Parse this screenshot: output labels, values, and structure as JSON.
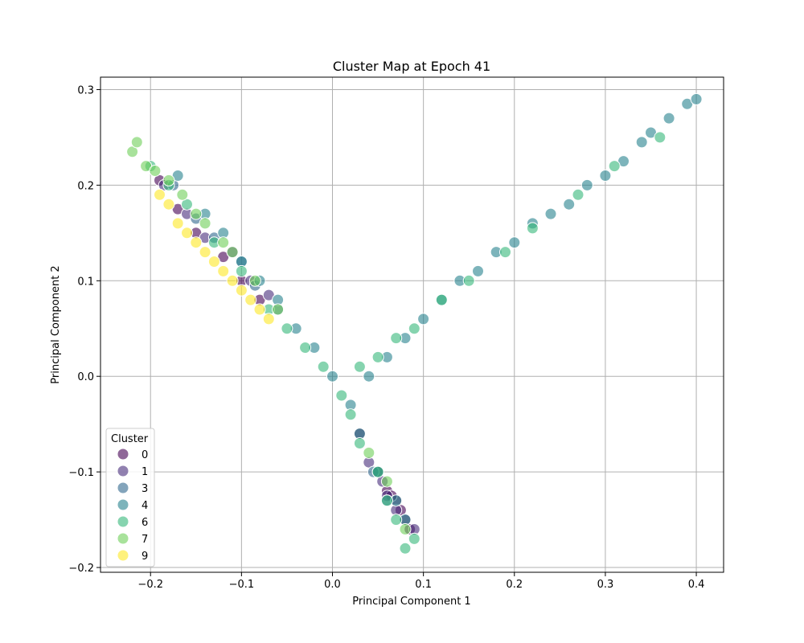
{
  "chart_data": {
    "type": "scatter",
    "title": "Cluster Map at Epoch 41",
    "xlabel": "Principal Component 1",
    "ylabel": "Principal Component 2",
    "xlim": [
      -0.255,
      0.43
    ],
    "ylim": [
      -0.205,
      0.313
    ],
    "x_ticks": [
      -0.2,
      -0.1,
      0.0,
      0.1,
      0.2,
      0.3,
      0.4
    ],
    "y_ticks": [
      -0.2,
      -0.1,
      0.0,
      0.1,
      0.2,
      0.3
    ],
    "x_tick_labels": [
      "−0.2",
      "−0.1",
      "0.0",
      "0.1",
      "0.2",
      "0.3",
      "0.4"
    ],
    "y_tick_labels": [
      "−0.2",
      "−0.1",
      "0.0",
      "0.1",
      "0.2",
      "0.3"
    ],
    "grid": true,
    "legend": {
      "title": "Cluster",
      "placement": "lower-left",
      "entries": [
        {
          "label": "0",
          "color": "#440154"
        },
        {
          "label": "1",
          "color": "#472d7b"
        },
        {
          "label": "3",
          "color": "#31688e"
        },
        {
          "label": "4",
          "color": "#26828e"
        },
        {
          "label": "6",
          "color": "#35b779"
        },
        {
          "label": "7",
          "color": "#6ece58"
        },
        {
          "label": "9",
          "color": "#fde725"
        }
      ]
    },
    "series": [
      {
        "name": "0",
        "color": "#440154",
        "points": [
          [
            -0.19,
            0.205
          ],
          [
            -0.17,
            0.175
          ],
          [
            -0.15,
            0.15
          ],
          [
            -0.12,
            0.125
          ],
          [
            -0.1,
            0.1
          ],
          [
            -0.08,
            0.08
          ],
          [
            0.03,
            -0.06
          ],
          [
            0.05,
            -0.1
          ],
          [
            0.06,
            -0.12
          ],
          [
            0.07,
            -0.13
          ],
          [
            0.08,
            -0.15
          ],
          [
            0.085,
            -0.16
          ],
          [
            0.065,
            -0.125
          ],
          [
            0.075,
            -0.14
          ]
        ]
      },
      {
        "name": "1",
        "color": "#472d7b",
        "points": [
          [
            -0.185,
            0.2
          ],
          [
            -0.16,
            0.17
          ],
          [
            -0.14,
            0.145
          ],
          [
            -0.11,
            0.13
          ],
          [
            -0.09,
            0.1
          ],
          [
            -0.07,
            0.085
          ],
          [
            0.04,
            -0.09
          ],
          [
            0.055,
            -0.11
          ],
          [
            0.07,
            -0.14
          ],
          [
            0.09,
            -0.16
          ],
          [
            0.06,
            -0.125
          ]
        ]
      },
      {
        "name": "3",
        "color": "#31688e",
        "points": [
          [
            -0.175,
            0.2
          ],
          [
            -0.15,
            0.165
          ],
          [
            -0.13,
            0.145
          ],
          [
            -0.1,
            0.12
          ],
          [
            -0.085,
            0.095
          ],
          [
            -0.06,
            0.07
          ],
          [
            0.045,
            -0.1
          ],
          [
            0.06,
            -0.13
          ]
        ]
      },
      {
        "name": "4",
        "color": "#26828e",
        "points": [
          [
            -0.17,
            0.21
          ],
          [
            -0.14,
            0.17
          ],
          [
            -0.12,
            0.15
          ],
          [
            -0.1,
            0.12
          ],
          [
            -0.08,
            0.1
          ],
          [
            -0.06,
            0.08
          ],
          [
            -0.04,
            0.05
          ],
          [
            -0.02,
            0.03
          ],
          [
            0.0,
            0.0
          ],
          [
            0.02,
            -0.03
          ],
          [
            0.04,
            0.0
          ],
          [
            0.06,
            0.02
          ],
          [
            0.08,
            0.04
          ],
          [
            0.1,
            0.06
          ],
          [
            0.12,
            0.08
          ],
          [
            0.14,
            0.1
          ],
          [
            0.16,
            0.11
          ],
          [
            0.18,
            0.13
          ],
          [
            0.2,
            0.14
          ],
          [
            0.22,
            0.16
          ],
          [
            0.24,
            0.17
          ],
          [
            0.26,
            0.18
          ],
          [
            0.28,
            0.2
          ],
          [
            0.3,
            0.21
          ],
          [
            0.32,
            0.225
          ],
          [
            0.34,
            0.245
          ],
          [
            0.35,
            0.255
          ],
          [
            0.37,
            0.27
          ],
          [
            0.39,
            0.285
          ],
          [
            0.4,
            0.29
          ],
          [
            0.03,
            -0.06
          ],
          [
            0.05,
            -0.1
          ],
          [
            0.07,
            -0.13
          ],
          [
            0.08,
            -0.15
          ]
        ]
      },
      {
        "name": "6",
        "color": "#35b779",
        "points": [
          [
            -0.2,
            0.22
          ],
          [
            -0.18,
            0.2
          ],
          [
            -0.16,
            0.18
          ],
          [
            -0.13,
            0.14
          ],
          [
            -0.1,
            0.11
          ],
          [
            -0.07,
            0.07
          ],
          [
            -0.05,
            0.05
          ],
          [
            -0.03,
            0.03
          ],
          [
            -0.01,
            0.01
          ],
          [
            0.01,
            -0.02
          ],
          [
            0.02,
            -0.04
          ],
          [
            0.03,
            -0.07
          ],
          [
            0.05,
            -0.1
          ],
          [
            0.06,
            -0.13
          ],
          [
            0.07,
            -0.15
          ],
          [
            0.09,
            -0.17
          ],
          [
            0.08,
            -0.18
          ],
          [
            0.03,
            0.01
          ],
          [
            0.05,
            0.02
          ],
          [
            0.07,
            0.04
          ],
          [
            0.09,
            0.05
          ],
          [
            0.12,
            0.08
          ],
          [
            0.15,
            0.1
          ],
          [
            0.19,
            0.13
          ],
          [
            0.22,
            0.155
          ],
          [
            0.27,
            0.19
          ],
          [
            0.31,
            0.22
          ],
          [
            0.36,
            0.25
          ]
        ]
      },
      {
        "name": "7",
        "color": "#6ece58",
        "points": [
          [
            -0.22,
            0.235
          ],
          [
            -0.215,
            0.245
          ],
          [
            -0.205,
            0.22
          ],
          [
            -0.195,
            0.215
          ],
          [
            -0.18,
            0.205
          ],
          [
            -0.165,
            0.19
          ],
          [
            -0.15,
            0.17
          ],
          [
            -0.14,
            0.16
          ],
          [
            -0.12,
            0.14
          ],
          [
            -0.11,
            0.13
          ],
          [
            -0.085,
            0.1
          ],
          [
            -0.06,
            0.07
          ],
          [
            0.04,
            -0.08
          ],
          [
            0.06,
            -0.11
          ],
          [
            0.08,
            -0.16
          ]
        ]
      },
      {
        "name": "9",
        "color": "#fde725",
        "points": [
          [
            -0.19,
            0.19
          ],
          [
            -0.18,
            0.18
          ],
          [
            -0.17,
            0.16
          ],
          [
            -0.16,
            0.15
          ],
          [
            -0.15,
            0.14
          ],
          [
            -0.14,
            0.13
          ],
          [
            -0.13,
            0.12
          ],
          [
            -0.12,
            0.11
          ],
          [
            -0.11,
            0.1
          ],
          [
            -0.1,
            0.09
          ],
          [
            -0.09,
            0.08
          ],
          [
            -0.08,
            0.07
          ],
          [
            -0.07,
            0.06
          ]
        ]
      }
    ]
  }
}
